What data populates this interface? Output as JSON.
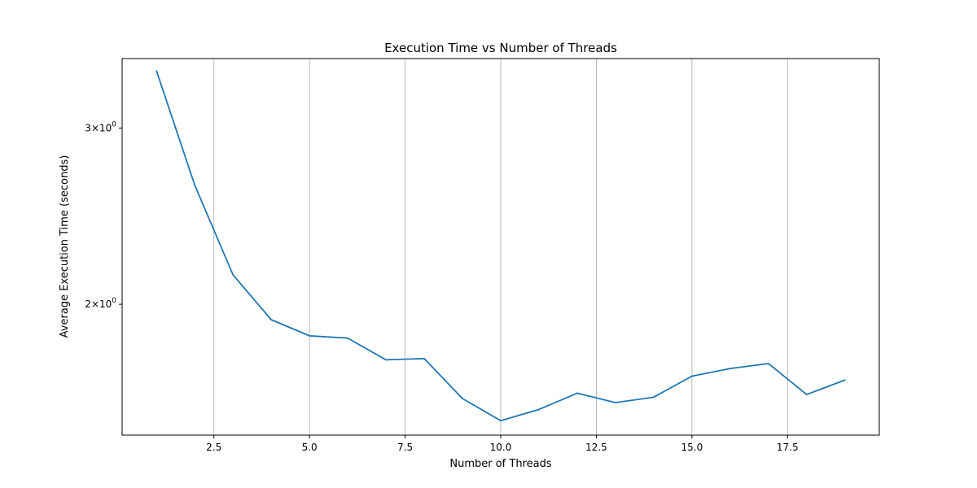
{
  "chart_data": {
    "type": "line",
    "title": "Execution Time vs Number of Threads",
    "xlabel": "Number of Threads",
    "ylabel": "Average Execution Time (seconds)",
    "yscale": "log",
    "grid": "x-only",
    "xlim": [
      0.1,
      19.9
    ],
    "ylim": [
      1.48,
      3.52
    ],
    "x_ticks": [
      {
        "value": 2.5,
        "label": "2.5"
      },
      {
        "value": 5.0,
        "label": "5.0"
      },
      {
        "value": 7.5,
        "label": "7.5"
      },
      {
        "value": 10.0,
        "label": "10.0"
      },
      {
        "value": 12.5,
        "label": "12.5"
      },
      {
        "value": 15.0,
        "label": "15.0"
      },
      {
        "value": 17.5,
        "label": "17.5"
      }
    ],
    "y_ticks": [
      {
        "value": 2,
        "base": "2",
        "exp": "0"
      },
      {
        "value": 3,
        "base": "3",
        "exp": "0"
      }
    ],
    "series": [
      {
        "name": "Average Execution Time",
        "color": "#1f77b4",
        "x": [
          1,
          2,
          3,
          4,
          5,
          6,
          7,
          8,
          9,
          10,
          11,
          12,
          13,
          14,
          15,
          16,
          17,
          18,
          19
        ],
        "values": [
          3.42,
          2.63,
          2.14,
          1.93,
          1.86,
          1.85,
          1.76,
          1.765,
          1.61,
          1.53,
          1.57,
          1.63,
          1.595,
          1.615,
          1.695,
          1.725,
          1.745,
          1.625,
          1.68
        ]
      }
    ]
  }
}
